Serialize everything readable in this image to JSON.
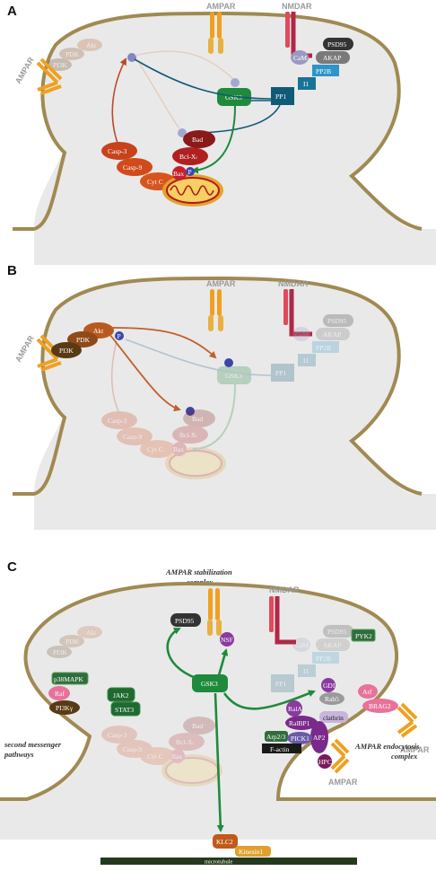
{
  "panels": [
    {
      "letter": "A",
      "labels": {
        "ampar_top": "AMPAR",
        "nmdar": "NMDAR",
        "ampar_left": "AMPAR"
      },
      "nodes": {
        "psd95": "PSD95",
        "cam": "CaM",
        "akap": "AKAP",
        "pp2b": "PP2B",
        "i1": "I1",
        "pp1": "PP1",
        "gsk3": "GSK3",
        "akt": "Akt",
        "pdk": "PDK",
        "pi3k": "PI3K",
        "casp3": "Casp-3",
        "casp9": "Casp-9",
        "cytc": "Cyt C",
        "bclxl": "Bcl-Xₗ",
        "bad": "Bad",
        "bax": "Bax",
        "p": "P"
      }
    },
    {
      "letter": "B",
      "labels": {
        "ampar_top": "AMPAR",
        "nmdar": "NMDAR",
        "ampar_left": "AMPAR"
      },
      "nodes": {
        "akt": "Akt",
        "pdk": "PDK",
        "pi3k": "PI3K",
        "p": "P",
        "psd95": "PSD95",
        "akap": "AKAP",
        "cam": "CaM",
        "pp2b": "PP2B",
        "i1": "I1",
        "pp1": "PP1",
        "gsk3": "GSK3",
        "bad": "Bad",
        "bclxl": "Bcl-Xₗ",
        "cytc": "Cyt C",
        "casp3": "Casp-3",
        "casp9": "Casp-9",
        "bax": "Bax"
      }
    },
    {
      "letter": "C",
      "labels": {
        "stab_title": "AMPAR stabilization complex",
        "nmdar": "NMDAR",
        "second_messenger": "second messenger pathways",
        "endocytosis": "AMPAR endocytosis complex",
        "trafficking": "AMPAR trafficking",
        "ampar_right1": "AMPAR",
        "ampar_right2": "AMPAR"
      },
      "nodes": {
        "psd95": "PSD95",
        "nsf": "NSF",
        "gsk3": "GSK3",
        "pyk2": "PYK2",
        "p38mapk": "p38MAPK",
        "raf": "Raf",
        "pi3kg": "PI3Kγ",
        "jak2": "JAK2",
        "stat3": "STAT3",
        "gdi": "GDI",
        "rab5": "Rab5",
        "arf": "Arf",
        "brag2": "BRAG2",
        "rala": "RalA",
        "ralbp1": "RalBP1",
        "clathrin": "clathrin",
        "arp23": "Arp2/3",
        "pick1": "PICK1",
        "ap2": "AP2",
        "factin": "F-actin",
        "hpc": "HPC",
        "klc2": "KLC2",
        "kinesin1": "Kinesin1",
        "microtubule": "microtubule",
        "ghost_akt": "Akt",
        "ghost_pdk": "PDK",
        "ghost_pi3k": "PI3K",
        "ghost_psd95": "PSD95",
        "ghost_akap": "AKAP",
        "ghost_cam": "CaM",
        "ghost_pp2b": "PP2B",
        "ghost_i1": "I1",
        "ghost_pp1": "PP1",
        "ghost_bad": "Bad",
        "ghost_bclxl": "Bcl-Xₗ",
        "ghost_cytc": "Cyt C",
        "ghost_casp3": "Casp-3",
        "ghost_casp9": "Casp-9",
        "ghost_bax": "Bax"
      }
    }
  ],
  "colors": {
    "membrane": "#a08a52",
    "cytoplasm": "#e9e9e9",
    "gsk3": "#1f8a3c",
    "pp1": "#0f5a77",
    "i1": "#1a7396",
    "pp2b": "#2d95c8",
    "akt": "#b85a1f",
    "pdk": "#8e4a18",
    "pi3k": "#5a3a14",
    "casp": "#c6431c",
    "bad": "#8a1a1a",
    "bax": "#c8202a",
    "phospho": "#3c46a8",
    "mito_outer": "#e0a52a",
    "mito_inner": "#b8141c",
    "receptor_ampar": "#f0a020",
    "receptor_nmdar": "#b02845",
    "endocytosis_purple": "#7a2a8a",
    "jak": "#2e6e3a",
    "microtubule": "#243a1c",
    "klc2": "#c05a1a",
    "kinesin": "#e0a030"
  }
}
